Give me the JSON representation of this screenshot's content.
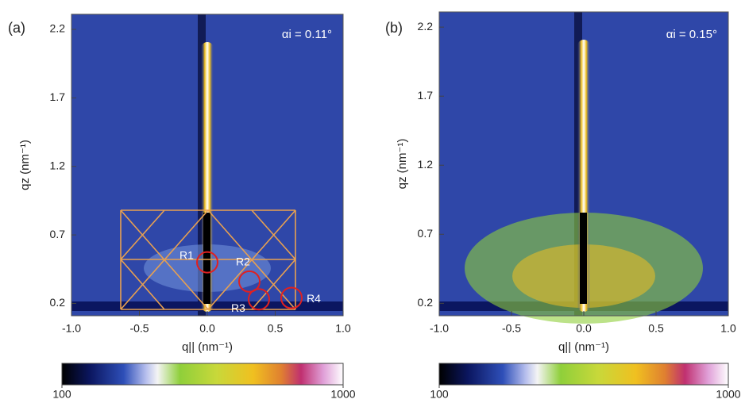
{
  "chart_data": [
    {
      "type": "heatmap",
      "panel_label": "(a)",
      "annotation": "αi = 0.11°",
      "xlabel": "q|| (nm⁻¹)",
      "ylabel": "qz (nm⁻¹)",
      "xlim": [
        -1.0,
        1.0
      ],
      "ylim": [
        0.11,
        2.31
      ],
      "xticks": [
        {
          "value": -1,
          "label": "-1.0"
        },
        -0.5,
        {
          "value": 0,
          "label": "0.0"
        },
        0.5,
        {
          "value": 1,
          "label": "1.0"
        }
      ],
      "yticks": [
        0.2,
        0.7,
        1.2,
        1.7,
        2.2
      ],
      "colorbar": {
        "scale": "log",
        "lim": [
          100,
          1000
        ],
        "ticks": [
          100,
          1000
        ]
      },
      "markers": [
        {
          "label": "R1",
          "x": 0.0,
          "y": 0.5,
          "color": "#e02020"
        },
        {
          "label": "R2",
          "x": 0.31,
          "y": 0.36,
          "color": "#e02020"
        },
        {
          "label": "R3",
          "x": 0.38,
          "y": 0.23,
          "color": "#e02020"
        },
        {
          "label": "R4",
          "x": 0.62,
          "y": 0.24,
          "color": "#e02020"
        }
      ]
    },
    {
      "type": "heatmap",
      "panel_label": "(b)",
      "annotation": "αi = 0.15°",
      "xlabel": "q|| (nm⁻¹)",
      "ylabel": "qz (nm⁻¹)",
      "xlim": [
        -1.0,
        1.0
      ],
      "ylim": [
        0.11,
        2.31
      ],
      "xticks": [
        {
          "value": -1,
          "label": "-1.0"
        },
        -0.5,
        {
          "value": 0,
          "label": "0.0"
        },
        0.5,
        {
          "value": 1,
          "label": "1.0"
        }
      ],
      "yticks": [
        0.2,
        0.7,
        1.2,
        1.7,
        2.2
      ],
      "colorbar": {
        "scale": "log",
        "lim": [
          100,
          1000
        ],
        "ticks": [
          100,
          1000
        ]
      }
    }
  ]
}
